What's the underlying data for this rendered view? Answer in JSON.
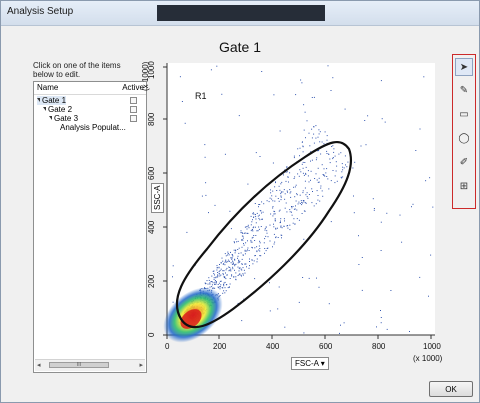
{
  "window": {
    "title": "Analysis Setup"
  },
  "heading": "Gate 1",
  "instructions": "Click on one of the items below to edit.",
  "tree": {
    "col_name": "Name",
    "col_active": "Active",
    "items": [
      {
        "label": "Gate 1",
        "level": 0,
        "expanded": true
      },
      {
        "label": "Gate 2",
        "level": 1,
        "expanded": true
      },
      {
        "label": "Gate 3",
        "level": 2,
        "expanded": true
      },
      {
        "label": "Analysis Populat...",
        "level": 3,
        "expanded": false
      }
    ],
    "scroll_thumb_text": "III"
  },
  "plot": {
    "region_label": "R1",
    "y_multiplier": "(x 1000)",
    "x_multiplier": "(x 1000)",
    "y_ticks": [
      "0",
      "200",
      "400",
      "600",
      "800",
      "1000"
    ],
    "x_ticks": [
      "0",
      "200",
      "400",
      "600",
      "800",
      "1000"
    ],
    "x_axis_label": "FSC-A",
    "y_axis_label": "SSC-A",
    "dropdown_glyph": "▾"
  },
  "toolbar": {
    "tools": [
      {
        "icon": "pointer-icon",
        "glyph": "➤",
        "active": true
      },
      {
        "icon": "polygon-gate-icon",
        "glyph": "✎"
      },
      {
        "icon": "rectangle-gate-icon",
        "glyph": "▭"
      },
      {
        "icon": "ellipse-gate-icon",
        "glyph": "◯"
      },
      {
        "icon": "freehand-gate-icon",
        "glyph": "✐"
      },
      {
        "icon": "quadrant-gate-icon",
        "glyph": "⊞"
      }
    ],
    "accent": "#cc2a2a"
  },
  "ok_label": "OK"
}
